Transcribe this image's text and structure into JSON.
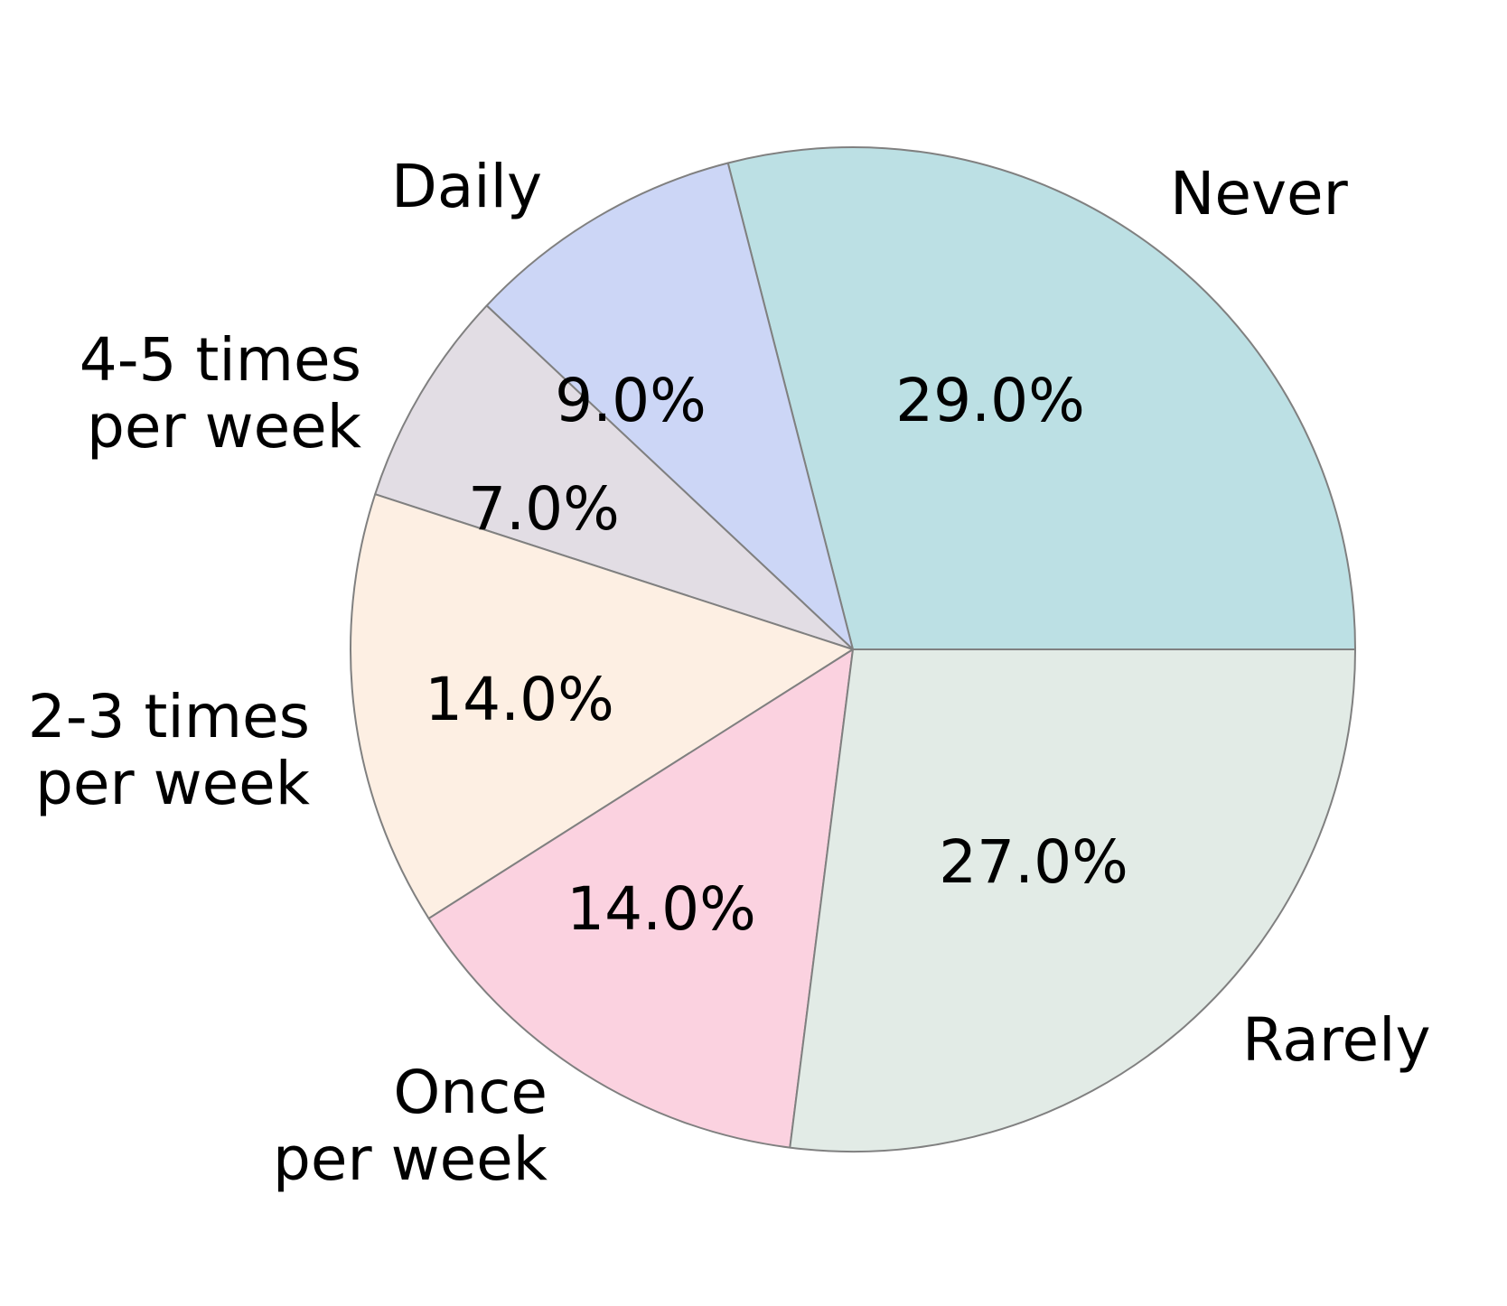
{
  "figure": {
    "background": "#ffffff"
  },
  "chart_data": {
    "type": "pie",
    "title": "",
    "legend": "none",
    "donut": false,
    "start_angle_deg": 0,
    "direction": "counterclockwise",
    "units": "%",
    "categories": [
      "Never",
      "Daily",
      "4-5 times\nper week",
      "2-3 times\nper week",
      "Once\nper week",
      "Rarely"
    ],
    "values": [
      29.0,
      9.0,
      7.0,
      14.0,
      14.0,
      27.0
    ],
    "slices": [
      {
        "label": "Never",
        "value": 29.0,
        "pct_label": "29.0%",
        "color": "#bce0e4"
      },
      {
        "label": "Daily",
        "value": 9.0,
        "pct_label": "9.0%",
        "color": "#ccd6f6"
      },
      {
        "label": "4-5 times\nper week",
        "value": 7.0,
        "pct_label": "7.0%",
        "color": "#e2dde4"
      },
      {
        "label": "2-3 times\nper week",
        "value": 14.0,
        "pct_label": "14.0%",
        "color": "#fdefe3"
      },
      {
        "label": "Once\nper week",
        "value": 14.0,
        "pct_label": "14.0%",
        "color": "#fbd2e0"
      },
      {
        "label": "Rarely",
        "value": 27.0,
        "pct_label": "27.0%",
        "color": "#e2ebe6"
      }
    ],
    "edge_color": "#808080",
    "text_color": "#000000"
  }
}
